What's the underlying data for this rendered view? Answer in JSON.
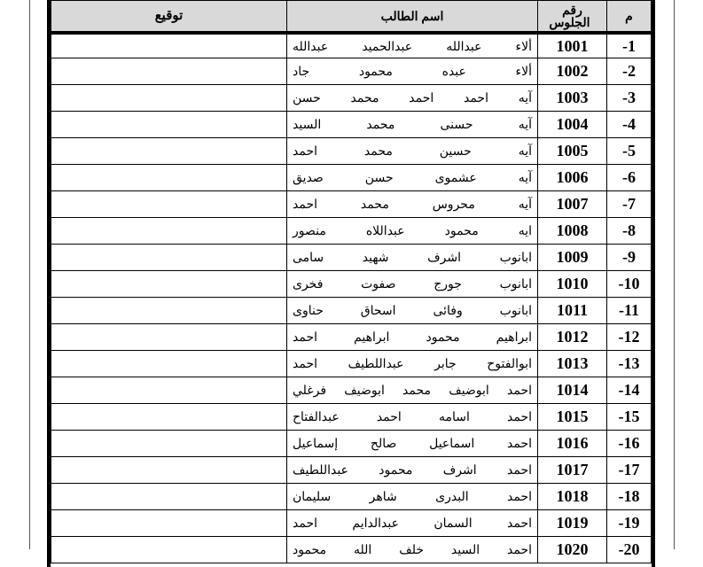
{
  "header": {
    "index": "م",
    "seat_number": "رقم الجلوس",
    "student_name": "اسم الطالب",
    "signature": "توقيع"
  },
  "colors": {
    "header_bg": "#d9d9d9",
    "border": "#000000"
  },
  "rows": [
    {
      "index": "-1",
      "seat": "1001",
      "name": "ألاء عبدالله عبدالحميد عبدالله"
    },
    {
      "index": "-2",
      "seat": "1002",
      "name": "ألاء عبده محمود جاد"
    },
    {
      "index": "-3",
      "seat": "1003",
      "name": "آيه احمد احمد محمد حسن"
    },
    {
      "index": "-4",
      "seat": "1004",
      "name": "آيه حسنى محمد السيد"
    },
    {
      "index": "-5",
      "seat": "1005",
      "name": "آيه حسين محمد احمد"
    },
    {
      "index": "-6",
      "seat": "1006",
      "name": "آيه عشموى حسن صديق"
    },
    {
      "index": "-7",
      "seat": "1007",
      "name": "آيه محروس محمد احمد"
    },
    {
      "index": "-8",
      "seat": "1008",
      "name": "ايه محمود عبداللاه منصور"
    },
    {
      "index": "-9",
      "seat": "1009",
      "name": "ابانوب اشرف شهيد سامى"
    },
    {
      "index": "-10",
      "seat": "1010",
      "name": "ابانوب جورج صفوت فخرى"
    },
    {
      "index": "-11",
      "seat": "1011",
      "name": "ابانوب وفائى اسحاق حناوى"
    },
    {
      "index": "-12",
      "seat": "1012",
      "name": "ابراهيم محمود ابراهيم احمد"
    },
    {
      "index": "-13",
      "seat": "1013",
      "name": "ابوالفتوح جابر عبداللطيف احمد"
    },
    {
      "index": "-14",
      "seat": "1014",
      "name": "احمد ابوضيف محمد ابوضيف فرغلي"
    },
    {
      "index": "-15",
      "seat": "1015",
      "name": "احمد اسامه احمد عبدالفتاح"
    },
    {
      "index": "-16",
      "seat": "1016",
      "name": "احمد اسماعيل صالح إسماعيل"
    },
    {
      "index": "-17",
      "seat": "1017",
      "name": "احمد اشرف محمود عبداللطيف"
    },
    {
      "index": "-18",
      "seat": "1018",
      "name": "احمد البدرى شاهر سليمان"
    },
    {
      "index": "-19",
      "seat": "1019",
      "name": "احمد السمان عبدالدايم احمد"
    },
    {
      "index": "-20",
      "seat": "1020",
      "name": "احمد السيد خلف الله محمود"
    }
  ]
}
